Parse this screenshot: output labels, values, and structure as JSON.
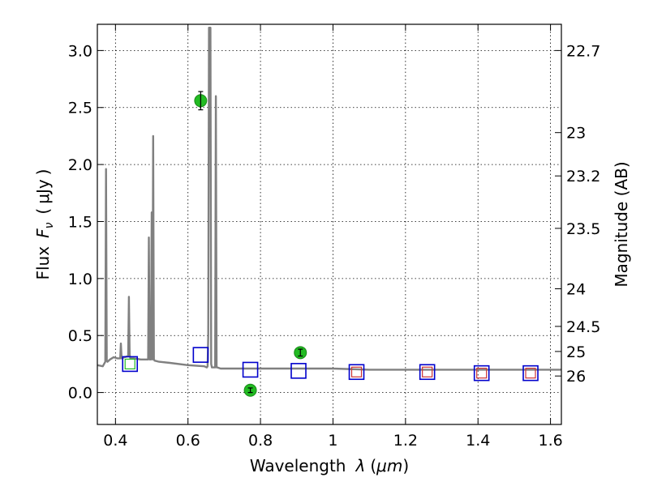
{
  "chart_data": {
    "type": "line",
    "xlabel_text": "Wavelength",
    "xlabel_symbol": "λ",
    "xlabel_unit": "μm",
    "ylabel_left_text": "Flux",
    "ylabel_left_symbol": "F",
    "ylabel_left_subscript": "ν",
    "ylabel_left_unit": "μJy",
    "ylabel_right": "Magnitude (AB)",
    "xlim": [
      0.35,
      1.63
    ],
    "ylim": [
      -0.28,
      3.23
    ],
    "grid": true,
    "x_ticks": [
      0.4,
      0.6,
      0.8,
      1.0,
      1.2,
      1.4,
      1.6
    ],
    "x_tick_labels": [
      "0.4",
      "0.6",
      "0.8",
      "1",
      "1.2",
      "1.4",
      "1.6"
    ],
    "y_ticks": [
      0.0,
      0.5,
      1.0,
      1.5,
      2.0,
      2.5,
      3.0
    ],
    "y_tick_labels": [
      "0.0",
      "0.5",
      "1.0",
      "1.5",
      "2.0",
      "2.5",
      "3.0"
    ],
    "right_ticks": [
      {
        "label": "22.7",
        "flux": 3.0
      },
      {
        "label": "23",
        "flux": 2.28
      },
      {
        "label": "23.2",
        "flux": 1.9
      },
      {
        "label": "23.5",
        "flux": 1.44
      },
      {
        "label": "24",
        "flux": 0.91
      },
      {
        "label": "24.5",
        "flux": 0.58
      },
      {
        "label": "25",
        "flux": 0.36
      },
      {
        "label": "26",
        "flux": 0.145
      }
    ],
    "series": [
      {
        "kind": "spectrum",
        "color": "#808080",
        "x": [
          0.35,
          0.365,
          0.372,
          0.374,
          0.376,
          0.378,
          0.385,
          0.395,
          0.405,
          0.413,
          0.415,
          0.417,
          0.425,
          0.435,
          0.437,
          0.439,
          0.441,
          0.45,
          0.47,
          0.49,
          0.492,
          0.494,
          0.496,
          0.498,
          0.5,
          0.502,
          0.504,
          0.506,
          0.508,
          0.52,
          0.55,
          0.6,
          0.645,
          0.652,
          0.654,
          0.656,
          0.658,
          0.66,
          0.662,
          0.664,
          0.666,
          0.675,
          0.677,
          0.679,
          0.681,
          0.69,
          0.75,
          0.8,
          0.9,
          1.0,
          1.1,
          1.2,
          1.3,
          1.4,
          1.5,
          1.63
        ],
        "y": [
          0.24,
          0.23,
          0.27,
          1.96,
          0.28,
          0.27,
          0.29,
          0.31,
          0.3,
          0.3,
          0.43,
          0.3,
          0.31,
          0.32,
          0.84,
          0.33,
          0.3,
          0.3,
          0.29,
          0.29,
          1.36,
          0.29,
          0.29,
          0.29,
          1.58,
          0.29,
          2.25,
          0.29,
          0.28,
          0.27,
          0.26,
          0.24,
          0.23,
          0.22,
          0.23,
          0.5,
          3.2,
          3.2,
          3.2,
          0.25,
          0.22,
          0.22,
          2.6,
          0.22,
          0.22,
          0.21,
          0.21,
          0.21,
          0.21,
          0.21,
          0.2,
          0.2,
          0.2,
          0.2,
          0.2,
          0.2
        ]
      },
      {
        "kind": "observed",
        "color": "#22bb22",
        "x": [
          0.635,
          0.772,
          0.91
        ],
        "y": [
          2.56,
          0.02,
          0.35
        ],
        "err": [
          0.08,
          0.02,
          0.03
        ]
      },
      {
        "kind": "model_blue",
        "color": "#0000cc",
        "x": [
          0.44,
          0.635,
          0.772,
          0.905,
          1.065,
          1.26,
          1.41,
          1.545
        ],
        "y": [
          0.25,
          0.33,
          0.2,
          0.19,
          0.18,
          0.18,
          0.17,
          0.17
        ]
      },
      {
        "kind": "model_inner",
        "x": [
          0.44,
          1.065,
          1.26,
          1.41,
          1.545
        ],
        "colors": [
          "#22bb22",
          "#cc3333",
          "#cc3333",
          "#cc3333",
          "#cc3333"
        ],
        "y": [
          0.25,
          0.18,
          0.18,
          0.17,
          0.17
        ]
      }
    ]
  }
}
